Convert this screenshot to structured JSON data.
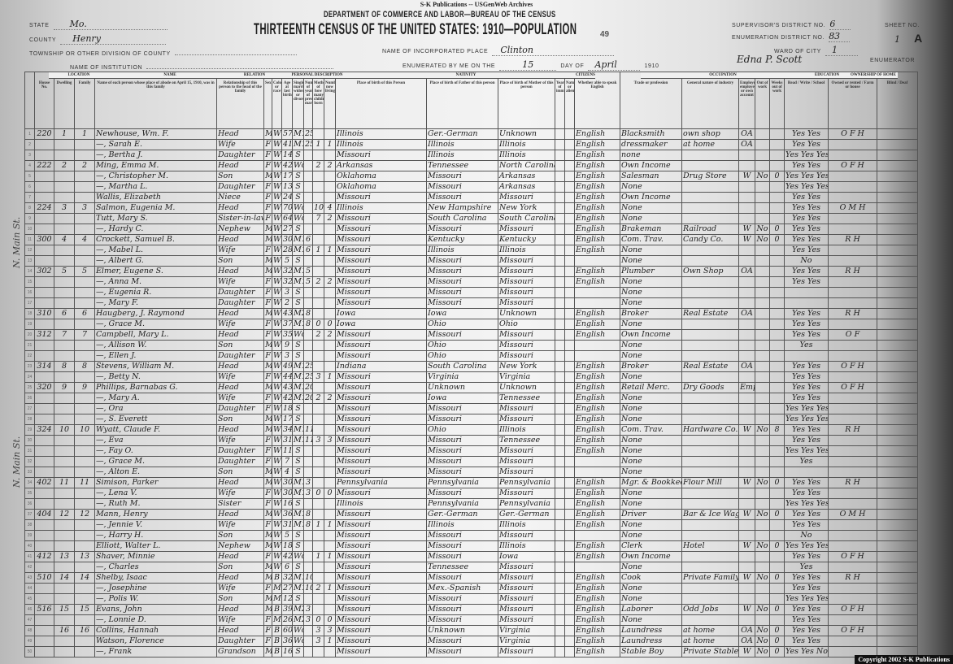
{
  "publisher": "S-K Publications -- USGenWeb Archives",
  "department": "DEPARTMENT OF COMMERCE AND LABOR—BUREAU OF THE CENSUS",
  "title": "THIRTEENTH CENSUS OF THE UNITED STATES: 1910—POPULATION",
  "page_number": "49",
  "header": {
    "state_label": "State",
    "state": "Mo.",
    "county_label": "County",
    "county": "Henry",
    "township_label": "Township or other division of county",
    "institution_label": "Name of institution",
    "place_label": "Name of incorporated place",
    "place": "Clinton",
    "enumerated_label": "Enumerated by me on the",
    "day": "15",
    "day_of_label": "day of",
    "month": "April",
    "year": "1910",
    "enumerator": "Edna P. Scott",
    "enumerator_label": "Enumerator",
    "supervisor_label": "Supervisor's District No.",
    "supervisor": "6",
    "ed_label": "Enumeration District No.",
    "ed": "83",
    "ward_label": "Ward of city",
    "ward": "1",
    "sheet_label": "Sheet No.",
    "sheet": "1",
    "sheet_letter": "A"
  },
  "groups": [
    "LOCATION",
    "NAME",
    "RELATION",
    "PERSONAL DESCRIPTION",
    "NATIVITY",
    "CITIZENSHIP",
    "OCCUPATION",
    "EDUCATION",
    "OWNERSHIP OF HOME"
  ],
  "columns": [
    "House No.",
    "Dwelling",
    "Family",
    "Name of each person whose place of abode on April 15, 1910, was in this family",
    "Relationship of this person to the head of the family",
    "Sex",
    "Color or race",
    "Age at last birthday",
    "Single, married, widowed, or divorced",
    "Number of years of present marriage",
    "Mother of how many children: born",
    "Number now living",
    "Place of birth of this Person",
    "Place of birth of Father of this person",
    "Place of birth of Mother of this person",
    "Year of immigration",
    "Naturalized or alien",
    "Whether able to speak English",
    "Trade or profession",
    "General nature of industry",
    "Employer, employee, or own account",
    "Out of work",
    "Weeks out of work",
    "Read / Write / School",
    "Owned or rented / Farm or house",
    "Blind / Deaf"
  ],
  "street": "N. Main St.",
  "rows": [
    [
      "220",
      "1",
      "1",
      "Newhouse, Wm. F.",
      "Head",
      "M",
      "W",
      "57",
      "M1",
      "25",
      "",
      "",
      "Illinois",
      "Ger.-German",
      "Unknown",
      "English",
      "Blacksmith",
      "own shop",
      "OA",
      "",
      "",
      "Yes Yes",
      "O F H"
    ],
    [
      "",
      "",
      "",
      "—, Sarah E.",
      "Wife",
      "F",
      "W",
      "41",
      "M1",
      "25",
      "1",
      "1",
      "Illinois",
      "Illinois",
      "Illinois",
      "English",
      "dressmaker",
      "at home",
      "OA",
      "",
      "",
      "Yes Yes",
      ""
    ],
    [
      "",
      "",
      "",
      "—, Bertha J.",
      "Daughter",
      "F",
      "W",
      "14",
      "S",
      "",
      "",
      "",
      "Missouri",
      "Illinois",
      "Illinois",
      "English",
      "none",
      "",
      "",
      "",
      "",
      "Yes Yes Yes",
      ""
    ],
    [
      "222",
      "2",
      "2",
      "Ming, Emma M.",
      "Head",
      "F",
      "W",
      "42",
      "Wd",
      "",
      "2",
      "2",
      "Arkansas",
      "Tennessee",
      "North Carolina",
      "English",
      "Own Income",
      "",
      "",
      "",
      "",
      "Yes Yes",
      "O F H"
    ],
    [
      "",
      "",
      "",
      "—, Christopher M.",
      "Son",
      "M",
      "W",
      "17",
      "S",
      "",
      "",
      "",
      "Oklahoma",
      "Missouri",
      "Arkansas",
      "English",
      "Salesman",
      "Drug Store",
      "W",
      "No",
      "0",
      "Yes Yes Yes",
      ""
    ],
    [
      "",
      "",
      "",
      "—, Martha L.",
      "Daughter",
      "F",
      "W",
      "13",
      "S",
      "",
      "",
      "",
      "Oklahoma",
      "Missouri",
      "Arkansas",
      "English",
      "None",
      "",
      "",
      "",
      "",
      "Yes Yes Yes",
      ""
    ],
    [
      "",
      "",
      "",
      "Wallis, Elizabeth",
      "Niece",
      "F",
      "W",
      "24",
      "S",
      "",
      "",
      "",
      "Missouri",
      "Missouri",
      "Missouri",
      "English",
      "Own Income",
      "",
      "",
      "",
      "",
      "Yes Yes",
      ""
    ],
    [
      "224",
      "3",
      "3",
      "Salmon, Eugenia M.",
      "Head",
      "F",
      "W",
      "70",
      "Wd",
      "",
      "10",
      "4",
      "Illinois",
      "New Hampshire",
      "New York",
      "English",
      "None",
      "",
      "",
      "",
      "",
      "Yes Yes",
      "O M H"
    ],
    [
      "",
      "",
      "",
      "Tutt, Mary S.",
      "Sister-in-law",
      "F",
      "W",
      "64",
      "Wd",
      "",
      "7",
      "2",
      "Missouri",
      "South Carolina",
      "South Carolina",
      "English",
      "None",
      "",
      "",
      "",
      "",
      "Yes Yes",
      ""
    ],
    [
      "",
      "",
      "",
      "—, Hardy C.",
      "Nephew",
      "M",
      "W",
      "27",
      "S",
      "",
      "",
      "",
      "Missouri",
      "Missouri",
      "Missouri",
      "English",
      "Brakeman",
      "Railroad",
      "W",
      "No",
      "0",
      "Yes Yes",
      ""
    ],
    [
      "300",
      "4",
      "4",
      "Crockett, Samuel B.",
      "Head",
      "M",
      "W",
      "30",
      "M1",
      "6",
      "",
      "",
      "Missouri",
      "Kentucky",
      "Kentucky",
      "English",
      "Com. Trav.",
      "Candy Co.",
      "W",
      "No",
      "0",
      "Yes Yes",
      "R H"
    ],
    [
      "",
      "",
      "",
      "—, Mabel L.",
      "Wife",
      "F",
      "W",
      "28",
      "M1",
      "6",
      "1",
      "1",
      "Missouri",
      "Illinois",
      "Illinois",
      "English",
      "None",
      "",
      "",
      "",
      "",
      "Yes Yes",
      ""
    ],
    [
      "",
      "",
      "",
      "—, Albert G.",
      "Son",
      "M",
      "W",
      "5",
      "S",
      "",
      "",
      "",
      "Missouri",
      "Missouri",
      "Missouri",
      "",
      "None",
      "",
      "",
      "",
      "",
      "No",
      ""
    ],
    [
      "302",
      "5",
      "5",
      "Elmer, Eugene S.",
      "Head",
      "M",
      "W",
      "32",
      "M1",
      "5",
      "",
      "",
      "Missouri",
      "Missouri",
      "Missouri",
      "English",
      "Plumber",
      "Own Shop",
      "OA",
      "",
      "",
      "Yes Yes",
      "R H"
    ],
    [
      "",
      "",
      "",
      "—, Anna M.",
      "Wife",
      "F",
      "W",
      "32",
      "M1",
      "5",
      "2",
      "2",
      "Missouri",
      "Missouri",
      "Missouri",
      "English",
      "None",
      "",
      "",
      "",
      "",
      "Yes Yes",
      ""
    ],
    [
      "",
      "",
      "",
      "—, Eugenia R.",
      "Daughter",
      "F",
      "W",
      "3",
      "S",
      "",
      "",
      "",
      "Missouri",
      "Missouri",
      "Missouri",
      "",
      "None",
      "",
      "",
      "",
      "",
      "",
      ""
    ],
    [
      "",
      "",
      "",
      "—, Mary F.",
      "Daughter",
      "F",
      "W",
      "2",
      "S",
      "",
      "",
      "",
      "Missouri",
      "Missouri",
      "Missouri",
      "",
      "None",
      "",
      "",
      "",
      "",
      "",
      ""
    ],
    [
      "310",
      "6",
      "6",
      "Haugberg, J. Raymond",
      "Head",
      "M",
      "W",
      "43",
      "M2",
      "8",
      "",
      "",
      "Iowa",
      "Iowa",
      "Unknown",
      "English",
      "Broker",
      "Real Estate",
      "OA",
      "",
      "",
      "Yes Yes",
      "R H"
    ],
    [
      "",
      "",
      "",
      "—, Grace M.",
      "Wife",
      "F",
      "W",
      "37",
      "M1",
      "8",
      "0",
      "0",
      "Iowa",
      "Ohio",
      "Ohio",
      "English",
      "None",
      "",
      "",
      "",
      "",
      "Yes Yes",
      ""
    ],
    [
      "312",
      "7",
      "7",
      "Campbell, Mary L.",
      "Head",
      "F",
      "W",
      "35",
      "Wd",
      "",
      "2",
      "2",
      "Missouri",
      "Missouri",
      "Missouri",
      "English",
      "Own Income",
      "",
      "",
      "",
      "",
      "Yes Yes",
      "O F"
    ],
    [
      "",
      "",
      "",
      "—, Allison W.",
      "Son",
      "M",
      "W",
      "9",
      "S",
      "",
      "",
      "",
      "Missouri",
      "Ohio",
      "Missouri",
      "",
      "None",
      "",
      "",
      "",
      "",
      "Yes",
      ""
    ],
    [
      "",
      "",
      "",
      "—, Ellen J.",
      "Daughter",
      "F",
      "W",
      "3",
      "S",
      "",
      "",
      "",
      "Missouri",
      "Ohio",
      "Missouri",
      "",
      "None",
      "",
      "",
      "",
      "",
      "",
      ""
    ],
    [
      "314",
      "8",
      "8",
      "Stevens, William M.",
      "Head",
      "M",
      "W",
      "49",
      "M1",
      "25",
      "",
      "",
      "Indiana",
      "South Carolina",
      "New York",
      "English",
      "Broker",
      "Real Estate",
      "OA",
      "",
      "",
      "Yes Yes",
      "O F H"
    ],
    [
      "",
      "",
      "",
      "—, Betty N.",
      "Wife",
      "F",
      "W",
      "44",
      "M1",
      "25",
      "3",
      "1",
      "Missouri",
      "Virginia",
      "Virginia",
      "English",
      "None",
      "",
      "",
      "",
      "",
      "Yes Yes",
      ""
    ],
    [
      "320",
      "9",
      "9",
      "Phillips, Barnabas G.",
      "Head",
      "M",
      "W",
      "43",
      "M1",
      "20",
      "",
      "",
      "Missouri",
      "Unknown",
      "Unknown",
      "English",
      "Retail Merc.",
      "Dry Goods",
      "Emp",
      "",
      "",
      "Yes Yes",
      "O F H"
    ],
    [
      "",
      "",
      "",
      "—, Mary A.",
      "Wife",
      "F",
      "W",
      "42",
      "M1",
      "20",
      "2",
      "2",
      "Missouri",
      "Iowa",
      "Tennessee",
      "English",
      "None",
      "",
      "",
      "",
      "",
      "Yes Yes",
      ""
    ],
    [
      "",
      "",
      "",
      "—, Ora",
      "Daughter",
      "F",
      "W",
      "18",
      "S",
      "",
      "",
      "",
      "Missouri",
      "Missouri",
      "Missouri",
      "English",
      "None",
      "",
      "",
      "",
      "",
      "Yes Yes Yes",
      ""
    ],
    [
      "",
      "",
      "",
      "—, S. Everett",
      "Son",
      "M",
      "W",
      "17",
      "S",
      "",
      "",
      "",
      "Missouri",
      "Missouri",
      "Missouri",
      "English",
      "None",
      "",
      "",
      "",
      "",
      "Yes Yes Yes",
      ""
    ],
    [
      "324",
      "10",
      "10",
      "Wyatt, Claude F.",
      "Head",
      "M",
      "W",
      "34",
      "M1",
      "11",
      "",
      "",
      "Missouri",
      "Ohio",
      "Illinois",
      "English",
      "Com. Trav.",
      "Hardware Co.",
      "W",
      "No",
      "8",
      "Yes Yes",
      "R H"
    ],
    [
      "",
      "",
      "",
      "—, Eva",
      "Wife",
      "F",
      "W",
      "31",
      "M1",
      "11",
      "3",
      "3",
      "Missouri",
      "Missouri",
      "Tennessee",
      "English",
      "None",
      "",
      "",
      "",
      "",
      "Yes Yes",
      ""
    ],
    [
      "",
      "",
      "",
      "—, Fay O.",
      "Daughter",
      "F",
      "W",
      "11",
      "S",
      "",
      "",
      "",
      "Missouri",
      "Missouri",
      "Missouri",
      "English",
      "None",
      "",
      "",
      "",
      "",
      "Yes Yes Yes",
      ""
    ],
    [
      "",
      "",
      "",
      "—, Grace M.",
      "Daughter",
      "F",
      "W",
      "7",
      "S",
      "",
      "",
      "",
      "Missouri",
      "Missouri",
      "Missouri",
      "",
      "None",
      "",
      "",
      "",
      "",
      "Yes",
      ""
    ],
    [
      "",
      "",
      "",
      "—, Alton E.",
      "Son",
      "M",
      "W",
      "4",
      "S",
      "",
      "",
      "",
      "Missouri",
      "Missouri",
      "Missouri",
      "",
      "None",
      "",
      "",
      "",
      "",
      "",
      ""
    ],
    [
      "402",
      "11",
      "11",
      "Simison, Parker",
      "Head",
      "M",
      "W",
      "30",
      "M1",
      "3",
      "",
      "",
      "Pennsylvania",
      "Pennsylvania",
      "Pennsylvania",
      "English",
      "Mgr. & Bookkeeper",
      "Flour Mill",
      "W",
      "No",
      "0",
      "Yes Yes",
      "R H"
    ],
    [
      "",
      "",
      "",
      "—, Lena V.",
      "Wife",
      "F",
      "W",
      "30",
      "M1",
      "3",
      "0",
      "0",
      "Missouri",
      "Missouri",
      "Missouri",
      "English",
      "None",
      "",
      "",
      "",
      "",
      "Yes Yes",
      ""
    ],
    [
      "",
      "",
      "",
      "—, Ruth M.",
      "Sister",
      "F",
      "W",
      "16",
      "S",
      "",
      "",
      "",
      "Illinois",
      "Pennsylvania",
      "Pennsylvania",
      "English",
      "None",
      "",
      "",
      "",
      "",
      "Yes Yes Yes",
      ""
    ],
    [
      "404",
      "12",
      "12",
      "Mann, Henry",
      "Head",
      "M",
      "W",
      "36",
      "M1",
      "8",
      "",
      "",
      "Missouri",
      "Ger.-German",
      "Ger.-German",
      "English",
      "Driver",
      "Bar & Ice Wagon",
      "W",
      "No",
      "0",
      "Yes Yes",
      "O M H"
    ],
    [
      "",
      "",
      "",
      "—, Jennie V.",
      "Wife",
      "F",
      "W",
      "31",
      "M1",
      "8",
      "1",
      "1",
      "Missouri",
      "Illinois",
      "Illinois",
      "English",
      "None",
      "",
      "",
      "",
      "",
      "Yes Yes",
      ""
    ],
    [
      "",
      "",
      "",
      "—, Harry H.",
      "Son",
      "M",
      "W",
      "5",
      "S",
      "",
      "",
      "",
      "Missouri",
      "Missouri",
      "Missouri",
      "",
      "None",
      "",
      "",
      "",
      "",
      "No",
      ""
    ],
    [
      "",
      "",
      "",
      "Elliott, Walter L.",
      "Nephew",
      "M",
      "W",
      "18",
      "S",
      "",
      "",
      "",
      "Missouri",
      "Missouri",
      "Illinois",
      "English",
      "Clerk",
      "Hotel",
      "W",
      "No",
      "0",
      "Yes Yes Yes",
      ""
    ],
    [
      "412",
      "13",
      "13",
      "Shaver, Minnie",
      "Head",
      "F",
      "W",
      "42",
      "Wd",
      "",
      "1",
      "1",
      "Missouri",
      "Missouri",
      "Iowa",
      "English",
      "Own Income",
      "",
      "",
      "",
      "",
      "Yes Yes",
      "O F H"
    ],
    [
      "",
      "",
      "",
      "—, Charles",
      "Son",
      "M",
      "W",
      "6",
      "S",
      "",
      "",
      "",
      "Missouri",
      "Tennessee",
      "Missouri",
      "",
      "None",
      "",
      "",
      "",
      "",
      "Yes",
      ""
    ],
    [
      "510",
      "14",
      "14",
      "Shelby, Isaac",
      "Head",
      "M",
      "B",
      "32",
      "M1",
      "10",
      "",
      "",
      "Missouri",
      "Missouri",
      "Missouri",
      "English",
      "Cook",
      "Private Family",
      "W",
      "No",
      "0",
      "Yes Yes",
      "R H"
    ],
    [
      "",
      "",
      "",
      "—, Josephine",
      "Wife",
      "F",
      "Mu",
      "27",
      "M1",
      "10",
      "2",
      "1",
      "Missouri",
      "Mex.-Spanish",
      "Missouri",
      "English",
      "None",
      "",
      "",
      "",
      "",
      "Yes Yes",
      ""
    ],
    [
      "",
      "",
      "",
      "—, Polis W.",
      "Son",
      "M",
      "Mu",
      "12",
      "S",
      "",
      "",
      "",
      "Missouri",
      "Missouri",
      "Missouri",
      "English",
      "None",
      "",
      "",
      "",
      "",
      "Yes Yes Yes",
      ""
    ],
    [
      "516",
      "15",
      "15",
      "Evans, John",
      "Head",
      "M",
      "B",
      "39",
      "M2",
      "3",
      "",
      "",
      "Missouri",
      "Missouri",
      "Missouri",
      "English",
      "Laborer",
      "Odd Jobs",
      "W",
      "No",
      "0",
      "Yes Yes",
      "O F H"
    ],
    [
      "",
      "",
      "",
      "—, Lonnie D.",
      "Wife",
      "F",
      "Mu",
      "26",
      "M2",
      "3",
      "0",
      "0",
      "Missouri",
      "Missouri",
      "Missouri",
      "English",
      "None",
      "",
      "",
      "",
      "",
      "Yes Yes",
      ""
    ],
    [
      "",
      "16",
      "16",
      "Collins, Hannah",
      "Head",
      "F",
      "B",
      "60",
      "Wd",
      "",
      "3",
      "3",
      "Missouri",
      "Unknown",
      "Virginia",
      "English",
      "Laundress",
      "at home",
      "OA",
      "No",
      "0",
      "Yes Yes",
      "O F H"
    ],
    [
      "",
      "",
      "",
      "Watson, Florence",
      "Daughter",
      "F",
      "B",
      "36",
      "Wd",
      "",
      "3",
      "1",
      "Missouri",
      "Missouri",
      "Virginia",
      "English",
      "Laundress",
      "at home",
      "OA",
      "No",
      "0",
      "Yes Yes",
      ""
    ],
    [
      "",
      "",
      "",
      "—, Frank",
      "Grandson",
      "M",
      "B",
      "16",
      "S",
      "",
      "",
      "",
      "Missouri",
      "Missouri",
      "Missouri",
      "English",
      "Stable Boy",
      "Private Stable",
      "W",
      "No",
      "0",
      "Yes Yes No",
      ""
    ]
  ],
  "copyright": "Copyright 2002 S-K Publications"
}
